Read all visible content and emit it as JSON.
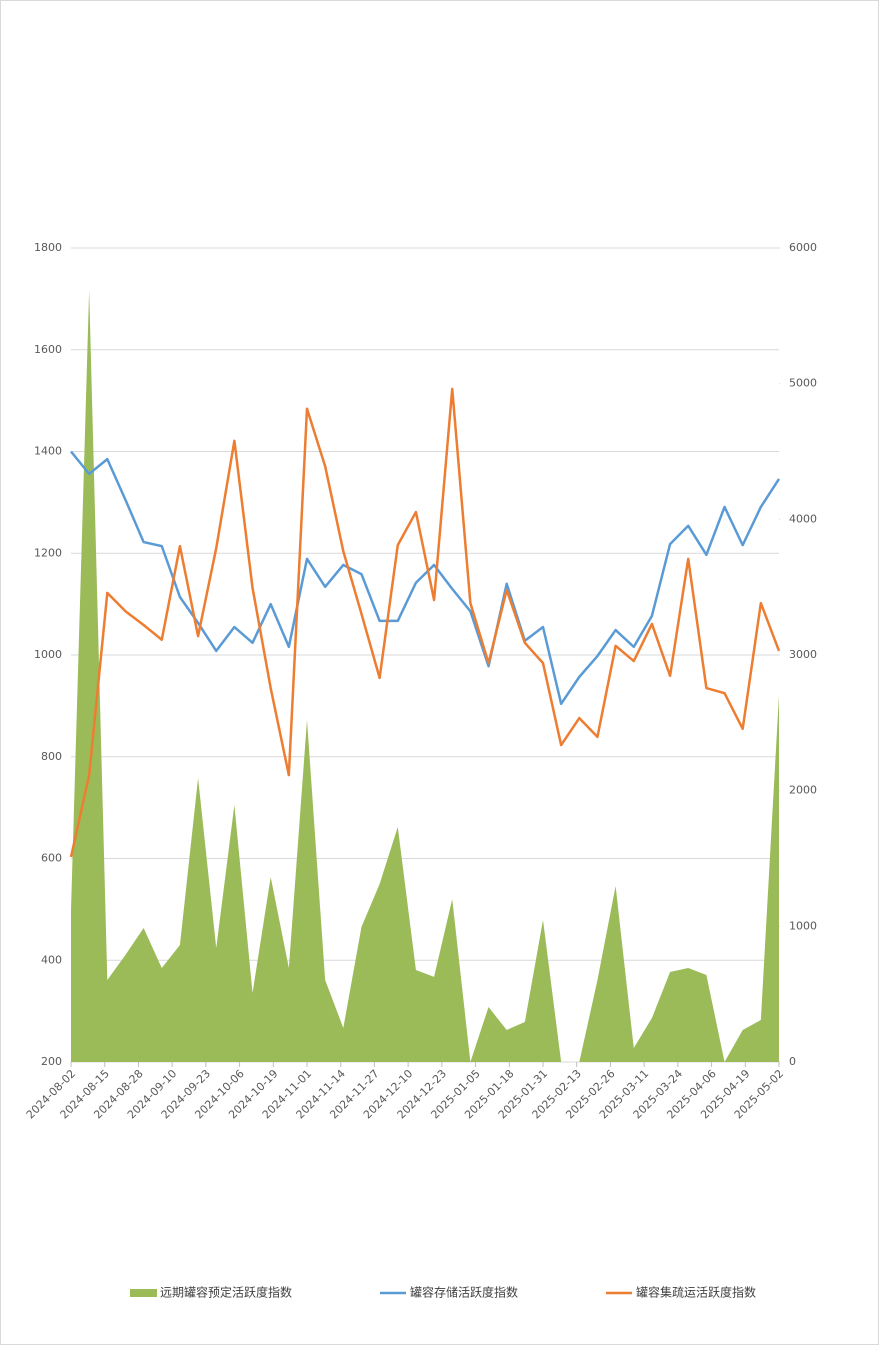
{
  "chart_data": {
    "type": "line",
    "x": [
      "2024-08-02",
      "2024-08-09",
      "2024-08-16",
      "2024-08-23",
      "2024-08-30",
      "2024-09-06",
      "2024-09-13",
      "2024-09-20",
      "2024-09-27",
      "2024-10-04",
      "2024-10-11",
      "2024-10-18",
      "2024-10-25",
      "2024-11-01",
      "2024-11-08",
      "2024-11-15",
      "2024-11-22",
      "2024-11-29",
      "2024-12-06",
      "2024-12-13",
      "2024-12-20",
      "2024-12-27",
      "2025-01-03",
      "2025-01-10",
      "2025-01-17",
      "2025-01-24",
      "2025-01-31",
      "2025-02-07",
      "2025-02-14",
      "2025-02-21",
      "2025-02-28",
      "2025-03-07",
      "2025-03-14",
      "2025-03-21",
      "2025-03-28",
      "2025-04-04",
      "2025-04-11",
      "2025-04-18",
      "2025-04-25",
      "2025-05-02"
    ],
    "xlim": [
      "2024-08-02",
      "2025-05-02"
    ],
    "xticks": [
      "2024-08-02",
      "2024-08-15",
      "2024-08-28",
      "2024-09-10",
      "2024-09-23",
      "2024-10-06",
      "2024-10-19",
      "2024-11-01",
      "2024-11-14",
      "2024-11-27",
      "2024-12-10",
      "2024-12-23",
      "2025-01-05",
      "2025-01-18",
      "2025-01-31",
      "2025-02-13",
      "2025-02-26",
      "2025-03-11",
      "2025-03-24",
      "2025-04-06",
      "2025-04-19",
      "2025-05-02"
    ],
    "ylim": [
      200,
      1800
    ],
    "yticks": [
      200,
      400,
      600,
      800,
      1000,
      1200,
      1400,
      1600,
      1800
    ],
    "y2lim": [
      0,
      6000
    ],
    "y2ticks": [
      0,
      1000,
      2000,
      3000,
      4000,
      5000,
      6000
    ],
    "grid": true,
    "legend": "bottom",
    "series": [
      {
        "name": "远期罐容预定活跃度指数",
        "type": "area",
        "axis": "y2",
        "color": "#9bbb59",
        "values": [
          1120,
          5690,
          604,
          789,
          988,
          693,
          862,
          2093,
          840,
          1894,
          509,
          1364,
          693,
          2521,
          604,
          251,
          995,
          1312,
          1732,
          678,
          627,
          1201,
          0,
          405,
          236,
          295,
          1047,
          0,
          0,
          604,
          1297,
          103,
          324,
          663,
          693,
          641,
          0,
          236,
          310,
          2705
        ]
      },
      {
        "name": "罐容存储活跃度指数",
        "type": "line",
        "color": "#5b9bd5",
        "values": [
          1400,
          1356,
          1385,
          1305,
          1222,
          1214,
          1114,
          1063,
          1008,
          1055,
          1024,
          1100,
          1016,
          1189,
          1134,
          1177,
          1159,
          1067,
          1067,
          1142,
          1177,
          1130,
          1086,
          978,
          1140,
          1028,
          1055,
          904,
          957,
          998,
          1049,
          1016,
          1077,
          1218,
          1254,
          1197,
          1291,
          1216,
          1291,
          1346
        ]
      },
      {
        "name": "罐容集疏运活跃度指数",
        "type": "line",
        "color": "#ed7d31",
        "values": [
          603,
          764,
          1122,
          1086,
          1059,
          1030,
          1214,
          1037,
          1210,
          1421,
          1132,
          935,
          764,
          1484,
          1371,
          1204,
          1081,
          955,
          1216,
          1281,
          1108,
          1523,
          1102,
          984,
          1128,
          1024,
          984,
          823,
          876,
          839,
          1018,
          988,
          1061,
          959,
          1189,
          935,
          925,
          855,
          1102,
          1008
        ]
      }
    ]
  }
}
